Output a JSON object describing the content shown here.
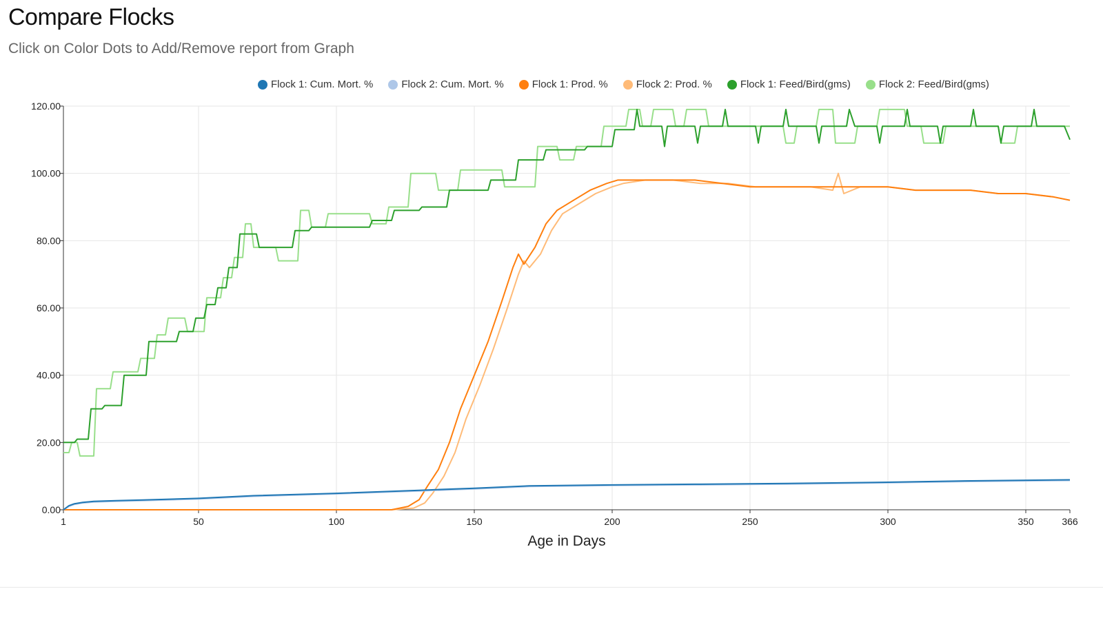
{
  "header": {
    "title": "Compare Flocks",
    "subtitle": "Click on Color Dots to Add/Remove report from Graph"
  },
  "chart_data": {
    "type": "line",
    "xlabel": "Age in Days",
    "ylabel": "",
    "xlim": [
      1,
      366
    ],
    "ylim": [
      0,
      120
    ],
    "x_ticks": [
      1,
      50,
      100,
      150,
      200,
      250,
      300,
      350,
      366
    ],
    "x_tick_labels": [
      "1",
      "50",
      "100",
      "150",
      "200",
      "250",
      "300",
      "350",
      "366"
    ],
    "y_ticks": [
      0,
      20,
      40,
      60,
      80,
      100,
      120
    ],
    "y_tick_labels": [
      "0.00",
      "20.00",
      "40.00",
      "60.00",
      "80.00",
      "100.00",
      "120.00"
    ],
    "grid": true,
    "legend_placement": "top",
    "series": [
      {
        "name": "Flock 1: Cum. Mort. %",
        "color": "#1f77b4",
        "x": [
          1,
          3,
          5,
          8,
          12,
          20,
          30,
          50,
          70,
          100,
          130,
          150,
          170,
          200,
          230,
          260,
          300,
          330,
          366
        ],
        "y": [
          0,
          1.2,
          1.8,
          2.2,
          2.5,
          2.7,
          2.9,
          3.4,
          4.2,
          4.9,
          5.8,
          6.4,
          7.1,
          7.4,
          7.6,
          7.8,
          8.2,
          8.6,
          8.9
        ]
      },
      {
        "name": "Flock 2: Cum. Mort. %",
        "color": "#aec7e8",
        "x": [
          1,
          3,
          5,
          8,
          12,
          20,
          30,
          50,
          70,
          100,
          130,
          150,
          170,
          200,
          230,
          260,
          300,
          330,
          366
        ],
        "y": [
          0,
          1.0,
          1.6,
          2.0,
          2.3,
          2.5,
          2.7,
          3.2,
          4.0,
          4.7,
          5.6,
          6.2,
          6.9,
          7.2,
          7.4,
          7.6,
          8.0,
          8.4,
          8.7
        ]
      },
      {
        "name": "Flock 1: Prod. %",
        "color": "#ff7f0e",
        "x": [
          1,
          120,
          126,
          130,
          133,
          137,
          141,
          145,
          150,
          155,
          160,
          164,
          166,
          168,
          172,
          176,
          180,
          186,
          192,
          198,
          202,
          210,
          220,
          230,
          240,
          250,
          260,
          270,
          280,
          290,
          300,
          310,
          320,
          330,
          340,
          350,
          360,
          366
        ],
        "y": [
          0,
          0,
          1,
          3,
          7,
          12,
          20,
          30,
          40,
          50,
          62,
          72,
          76,
          73,
          78,
          85,
          89,
          92,
          95,
          97,
          98,
          98,
          98,
          98,
          97,
          96,
          96,
          96,
          96,
          96,
          96,
          95,
          95,
          95,
          94,
          94,
          93,
          92
        ]
      },
      {
        "name": "Flock 2: Prod. %",
        "color": "#ffbb78",
        "x": [
          1,
          120,
          128,
          132,
          135,
          139,
          143,
          147,
          152,
          157,
          162,
          166,
          168,
          170,
          174,
          178,
          182,
          188,
          194,
          200,
          204,
          212,
          222,
          232,
          242,
          252,
          262,
          272,
          280,
          282,
          284,
          290,
          300,
          310,
          320,
          330,
          340,
          350,
          360,
          366
        ],
        "y": [
          0,
          0,
          0.5,
          2,
          5,
          10,
          17,
          27,
          37,
          48,
          60,
          70,
          74,
          72,
          76,
          83,
          88,
          91,
          94,
          96,
          97,
          98,
          98,
          97,
          97,
          96,
          96,
          96,
          95,
          100,
          94,
          96,
          96,
          95,
          95,
          95,
          94,
          94,
          93,
          92
        ]
      },
      {
        "name": "Flock 1: Feed/Bird(gms)",
        "color": "#2ca02c",
        "x": [
          1,
          5,
          6,
          10,
          11,
          15,
          16,
          22,
          23,
          31,
          32,
          42,
          43,
          48,
          49,
          52,
          53,
          56,
          57,
          60,
          61,
          64,
          65,
          71,
          72,
          84,
          85,
          90,
          91,
          100,
          101,
          112,
          113,
          120,
          121,
          130,
          131,
          140,
          141,
          155,
          156,
          165,
          166,
          175,
          176,
          190,
          191,
          200,
          201,
          208,
          209,
          210,
          211,
          218,
          219,
          220,
          221,
          230,
          231,
          232,
          233,
          240,
          241,
          242,
          243,
          252,
          253,
          254,
          255,
          262,
          263,
          264,
          265,
          274,
          275,
          276,
          277,
          285,
          286,
          288,
          289,
          296,
          297,
          298,
          299,
          306,
          307,
          308,
          309,
          318,
          319,
          320,
          321,
          330,
          331,
          332,
          333,
          340,
          341,
          342,
          343,
          352,
          353,
          354,
          355,
          364,
          366
        ],
        "y": [
          20,
          20,
          21,
          21,
          30,
          30,
          31,
          31,
          40,
          40,
          50,
          50,
          53,
          53,
          57,
          57,
          61,
          61,
          66,
          66,
          72,
          72,
          82,
          82,
          78,
          78,
          83,
          83,
          84,
          84,
          84,
          84,
          86,
          86,
          89,
          89,
          90,
          90,
          95,
          95,
          98,
          98,
          104,
          104,
          107,
          107,
          108,
          108,
          113,
          113,
          119,
          114,
          114,
          114,
          108,
          114,
          114,
          114,
          109,
          114,
          114,
          114,
          119,
          114,
          114,
          114,
          109,
          114,
          114,
          114,
          119,
          114,
          114,
          114,
          109,
          114,
          114,
          114,
          119,
          114,
          114,
          114,
          109,
          114,
          114,
          114,
          119,
          114,
          114,
          114,
          109,
          114,
          114,
          114,
          119,
          114,
          114,
          114,
          109,
          114,
          114,
          114,
          119,
          114,
          114,
          114,
          110
        ]
      },
      {
        "name": "Flock 2: Feed/Bird(gms)",
        "color": "#98df8a",
        "x": [
          1,
          3,
          4,
          6,
          7,
          12,
          13,
          18,
          19,
          28,
          29,
          34,
          35,
          38,
          39,
          45,
          46,
          52,
          53,
          58,
          59,
          62,
          63,
          66,
          67,
          69,
          70,
          78,
          79,
          86,
          87,
          90,
          91,
          96,
          97,
          112,
          113,
          118,
          119,
          126,
          127,
          136,
          137,
          144,
          145,
          160,
          161,
          172,
          173,
          180,
          181,
          186,
          187,
          196,
          197,
          205,
          206,
          210,
          211,
          214,
          215,
          222,
          223,
          226,
          227,
          234,
          235,
          238,
          239,
          250,
          251,
          262,
          263,
          266,
          267,
          274,
          275,
          280,
          281,
          288,
          289,
          296,
          297,
          306,
          307,
          312,
          313,
          320,
          321,
          336,
          337,
          340,
          341,
          346,
          347,
          356,
          357,
          366
        ],
        "y": [
          17,
          17,
          20,
          20,
          16,
          16,
          36,
          36,
          41,
          41,
          45,
          45,
          52,
          52,
          57,
          57,
          53,
          53,
          63,
          63,
          69,
          69,
          75,
          75,
          85,
          85,
          78,
          78,
          74,
          74,
          89,
          89,
          84,
          84,
          88,
          88,
          85,
          85,
          90,
          90,
          100,
          100,
          95,
          95,
          101,
          101,
          96,
          96,
          108,
          108,
          104,
          104,
          108,
          108,
          114,
          114,
          119,
          119,
          114,
          114,
          119,
          119,
          114,
          114,
          119,
          119,
          114,
          114,
          114,
          114,
          114,
          114,
          109,
          109,
          114,
          114,
          119,
          119,
          109,
          109,
          114,
          114,
          119,
          119,
          114,
          114,
          109,
          109,
          114,
          114,
          114,
          114,
          109,
          109,
          114,
          114,
          114,
          114
        ]
      }
    ]
  }
}
